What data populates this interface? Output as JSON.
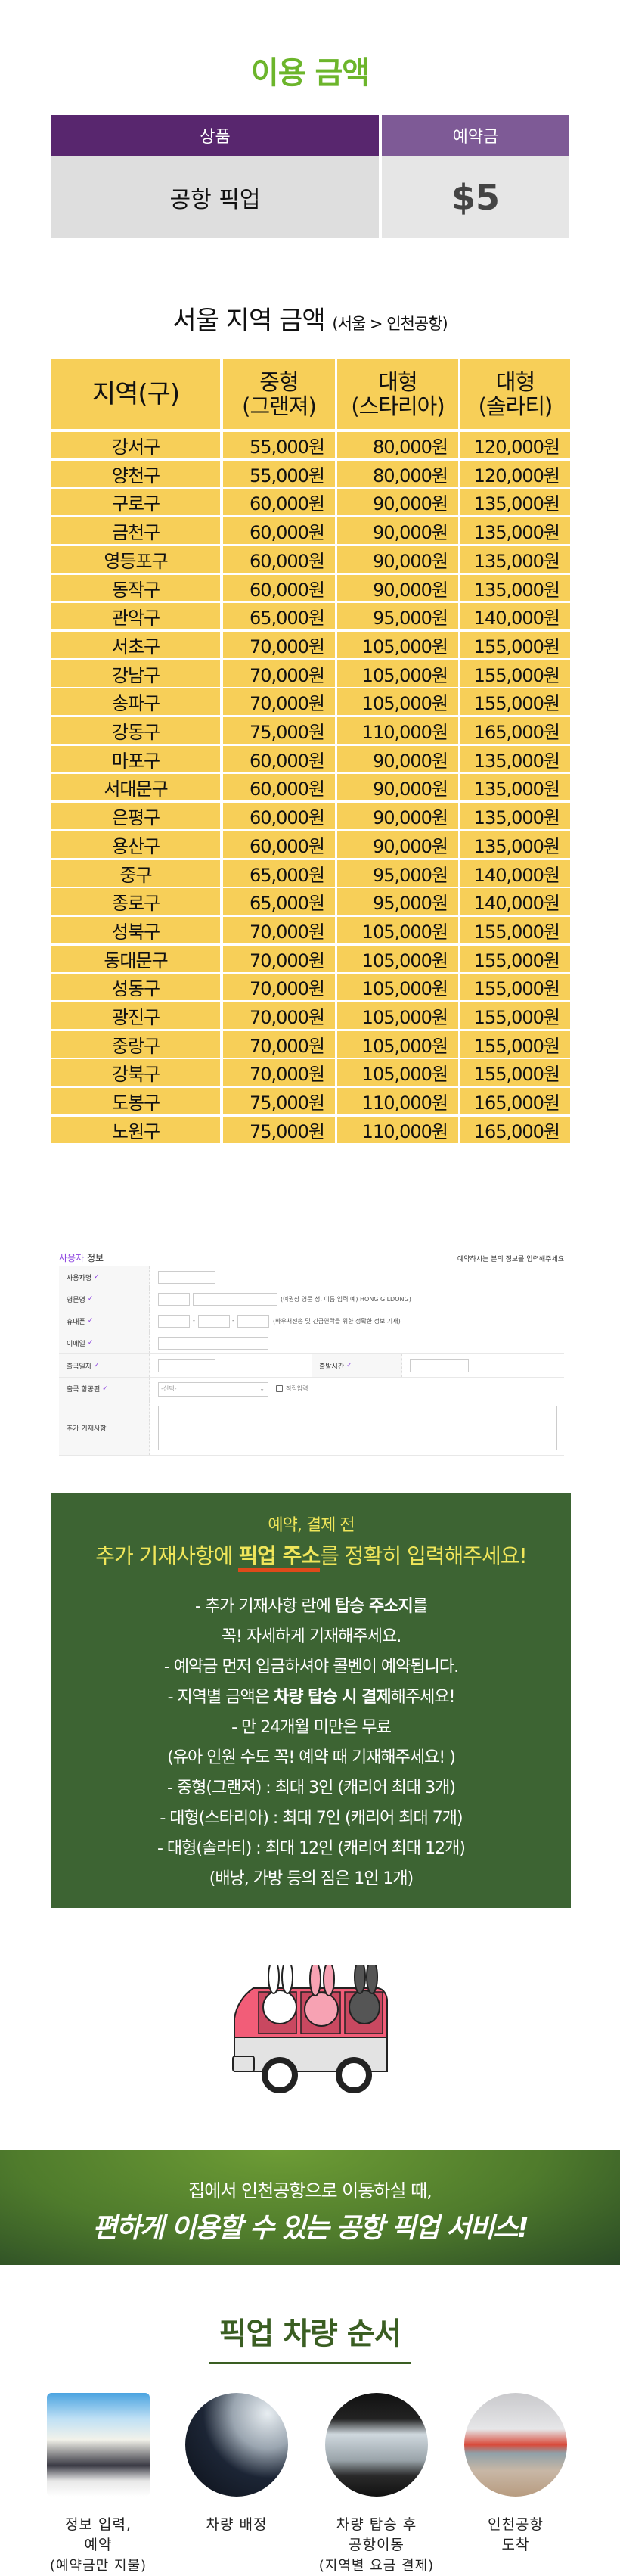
{
  "price": {
    "title": "이용 금액",
    "header_product": "상품",
    "header_deposit": "예약금",
    "product": "공항 픽업",
    "deposit": "$5"
  },
  "seoul": {
    "title": "서울 지역 금액",
    "subtitle": "(서울 > 인천공항)",
    "headers": [
      {
        "line1": "지역(구)",
        "line2": ""
      },
      {
        "line1": "중형",
        "line2": "(그랜져)"
      },
      {
        "line1": "대형",
        "line2": "(스타리아)"
      },
      {
        "line1": "대형",
        "line2": "(솔라티)"
      }
    ],
    "rows": [
      [
        "강서구",
        "55,000원",
        "80,000원",
        "120,000원"
      ],
      [
        "양천구",
        "55,000원",
        "80,000원",
        "120,000원"
      ],
      [
        "구로구",
        "60,000원",
        "90,000원",
        "135,000원"
      ],
      [
        "금천구",
        "60,000원",
        "90,000원",
        "135,000원"
      ],
      [
        "영등포구",
        "60,000원",
        "90,000원",
        "135,000원"
      ],
      [
        "동작구",
        "60,000원",
        "90,000원",
        "135,000원"
      ],
      [
        "관악구",
        "65,000원",
        "95,000원",
        "140,000원"
      ],
      [
        "서초구",
        "70,000원",
        "105,000원",
        "155,000원"
      ],
      [
        "강남구",
        "70,000원",
        "105,000원",
        "155,000원"
      ],
      [
        "송파구",
        "70,000원",
        "105,000원",
        "155,000원"
      ],
      [
        "강동구",
        "75,000원",
        "110,000원",
        "165,000원"
      ],
      [
        "마포구",
        "60,000원",
        "90,000원",
        "135,000원"
      ],
      [
        "서대문구",
        "60,000원",
        "90,000원",
        "135,000원"
      ],
      [
        "은평구",
        "60,000원",
        "90,000원",
        "135,000원"
      ],
      [
        "용산구",
        "60,000원",
        "90,000원",
        "135,000원"
      ],
      [
        "중구",
        "65,000원",
        "95,000원",
        "140,000원"
      ],
      [
        "종로구",
        "65,000원",
        "95,000원",
        "140,000원"
      ],
      [
        "성북구",
        "70,000원",
        "105,000원",
        "155,000원"
      ],
      [
        "동대문구",
        "70,000원",
        "105,000원",
        "155,000원"
      ],
      [
        "성동구",
        "70,000원",
        "105,000원",
        "155,000원"
      ],
      [
        "광진구",
        "70,000원",
        "105,000원",
        "155,000원"
      ],
      [
        "중랑구",
        "70,000원",
        "105,000원",
        "155,000원"
      ],
      [
        "강북구",
        "70,000원",
        "105,000원",
        "155,000원"
      ],
      [
        "도봉구",
        "75,000원",
        "110,000원",
        "165,000원"
      ],
      [
        "노원구",
        "75,000원",
        "110,000원",
        "165,000원"
      ]
    ]
  },
  "form": {
    "title_accent": "사용자",
    "title_rest": " 정보",
    "description": "예약하시는 분의 정보를 입력해주세요",
    "check": "✓",
    "labels": {
      "name": "사용자명",
      "english_name": "영문명",
      "phone": "휴대폰",
      "email": "이메일",
      "departure_date": "출국일자",
      "departure_time": "출발시간",
      "flight": "출국 항공편",
      "notes": "추가 기재사항"
    },
    "english_name_hint": "(여권상 영문 성, 이름 입력 예) HONG GILDONG)",
    "phone_hint": "(바우처전송 및 긴급연락을 위한 정확한 정보 기재)",
    "phone_separator": "-",
    "flight_select": "-선택-",
    "direct_input_label": "직접입력"
  },
  "notice": {
    "line1": "예약, 결제 전",
    "headline_pre": "추가 기재사항에 ",
    "headline_em": "픽업 주소",
    "headline_post": "를 정확히 입력해주세요!",
    "b1_pre": "- 추가 기재사항 란에 ",
    "b1_em": "탑승 주소지",
    "b1_post": "를",
    "b2": "꼭! 자세하게 기재해주세요.",
    "b3": "- 예약금 먼저 입금하셔야 콜벤이 예약됩니다.",
    "b4_pre": "- 지역별 금액은 ",
    "b4_em": "차량 탑승 시 결제",
    "b4_post": "해주세요!",
    "b5": "- 만 24개월 미만은 무료",
    "b6": "(유아 인원 수도 꼭! 예약 때 기재해주세요! )",
    "b7": "- 중형(그랜져) : 최대 3인 (캐리어 최대 3개)",
    "b8": "- 대형(스타리아) : 최대 7인 (캐리어 최대 7개)",
    "b9": "- 대형(솔라티) : 최대 12인 (캐리어 최대 12개)",
    "b10": "(배낭, 가방 등의 짐은 1인 1개)"
  },
  "banner": {
    "line1": "집에서 인천공항으로 이동하실 때,",
    "line2": "편하게 이용할 수 있는 공항 픽업 서비스!"
  },
  "steps": {
    "title": "픽업 차량 순서",
    "items": [
      {
        "line1": "정보 입력,",
        "line2": "예약",
        "line3": "(예약금만 지불)"
      },
      {
        "line1": "차량 배정",
        "line2": "",
        "line3": ""
      },
      {
        "line1": "차량 탑승 후",
        "line2": "공항이동",
        "line3": "(지역별 요금 결제)"
      },
      {
        "line1": "인천공항",
        "line2": "도착",
        "line3": ""
      }
    ]
  },
  "colors": {
    "title_green": "#6cb52b",
    "purple_dark": "#58266e",
    "purple_light": "#7e5a96",
    "table_yellow": "#f7cf58",
    "notice_green": "#3d6433",
    "notice_yellow": "#f0e65a",
    "underline_red": "#e04a1a",
    "section_green": "#3a5e22"
  }
}
